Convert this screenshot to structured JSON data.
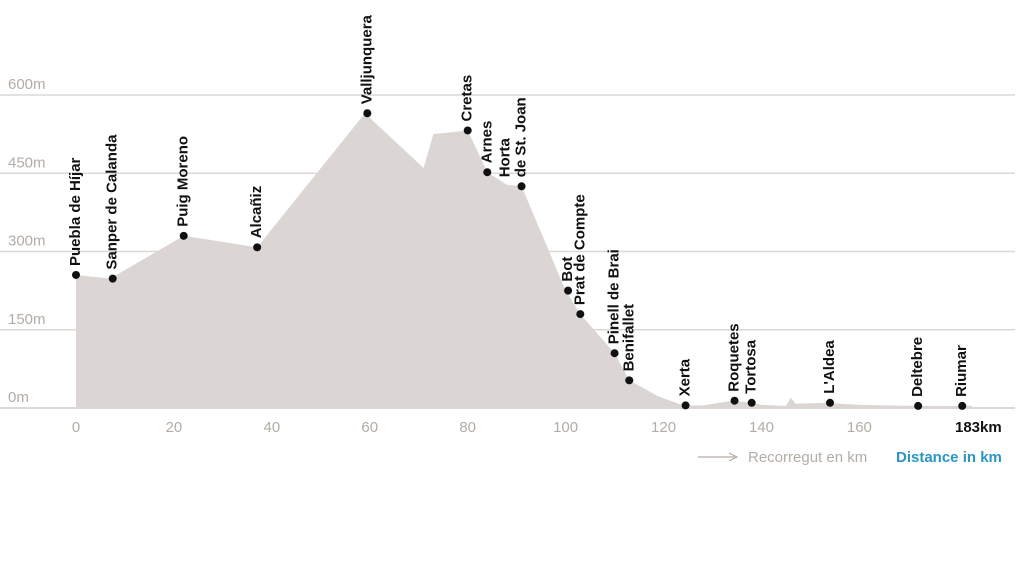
{
  "chart_data": {
    "type": "area",
    "xticks": [
      0,
      20,
      40,
      60,
      80,
      100,
      120,
      140,
      160
    ],
    "yticks": [
      {
        "value": 0,
        "label": "0m"
      },
      {
        "value": 150,
        "label": "150m"
      },
      {
        "value": 300,
        "label": "300m"
      },
      {
        "value": 450,
        "label": "450m"
      },
      {
        "value": 600,
        "label": "600m"
      }
    ],
    "xlim": [
      0,
      183
    ],
    "ylim": [
      0,
      600
    ],
    "grid": true,
    "end_label": "183km",
    "legend_left": "Recorregut en km",
    "legend_right": "Distance in km",
    "colors": {
      "area": "#dbd6d3",
      "grid": "#dcd8d5",
      "tick": "#b3aca6",
      "accent": "#2b95c4",
      "marker": "#111111"
    },
    "profile": [
      [
        0,
        0
      ],
      [
        0,
        255
      ],
      [
        7,
        248
      ],
      [
        22,
        330
      ],
      [
        37,
        308
      ],
      [
        59,
        565
      ],
      [
        71,
        460
      ],
      [
        73,
        525
      ],
      [
        80,
        532
      ],
      [
        84,
        452
      ],
      [
        88,
        428
      ],
      [
        91,
        425
      ],
      [
        100,
        225
      ],
      [
        103,
        180
      ],
      [
        110,
        105
      ],
      [
        113,
        53
      ],
      [
        119,
        22
      ],
      [
        124,
        5
      ],
      [
        128,
        5
      ],
      [
        134,
        14
      ],
      [
        138,
        10
      ],
      [
        140,
        6
      ],
      [
        145,
        4
      ],
      [
        146,
        20
      ],
      [
        147,
        8
      ],
      [
        153,
        10
      ],
      [
        160,
        6
      ],
      [
        171,
        4
      ],
      [
        183,
        4
      ],
      [
        183,
        0
      ]
    ],
    "places": [
      {
        "name": "Puebla de Híjar",
        "x": 0,
        "y": 255
      },
      {
        "name": "Sanper de Calanda",
        "x": 7.5,
        "y": 248
      },
      {
        "name": "Puig Moreno",
        "x": 22,
        "y": 330
      },
      {
        "name": "Alcañiz",
        "x": 37,
        "y": 308
      },
      {
        "name": "Valljunquera",
        "x": 59.5,
        "y": 565
      },
      {
        "name": "Cretas",
        "x": 80,
        "y": 532
      },
      {
        "name": "Arnes",
        "x": 84,
        "y": 452
      },
      {
        "name": "Horta de St. Joan",
        "x": 91,
        "y": 425
      },
      {
        "name": "Bot",
        "x": 100.5,
        "y": 225
      },
      {
        "name": "Prat de Compte",
        "x": 103,
        "y": 180
      },
      {
        "name": "Pinell de Brai",
        "x": 110,
        "y": 105
      },
      {
        "name": "Benifallet",
        "x": 113,
        "y": 53
      },
      {
        "name": "Xerta",
        "x": 124.5,
        "y": 5
      },
      {
        "name": "Roquetes",
        "x": 134.5,
        "y": 14
      },
      {
        "name": "Tortosa",
        "x": 138,
        "y": 10
      },
      {
        "name": "L'Aldea",
        "x": 154,
        "y": 10
      },
      {
        "name": "Deltebre",
        "x": 172,
        "y": 4
      },
      {
        "name": "Riumar",
        "x": 181,
        "y": 4
      }
    ]
  }
}
